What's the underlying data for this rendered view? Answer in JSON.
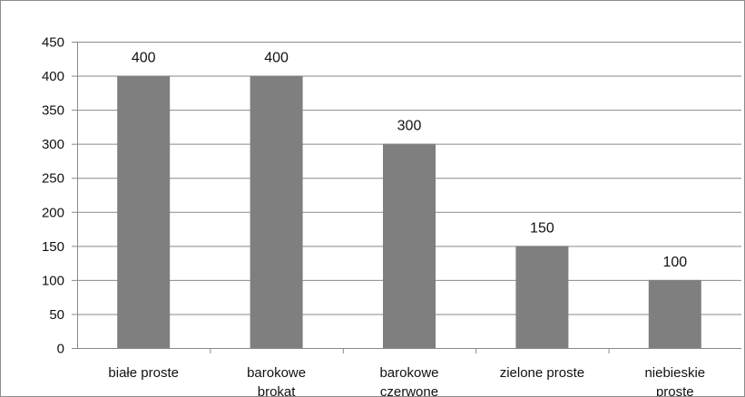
{
  "chart_data": {
    "type": "bar",
    "categories": [
      [
        "białe proste"
      ],
      [
        "barokowe",
        "brokat"
      ],
      [
        "barokowe",
        "czerwone"
      ],
      [
        "zielone proste"
      ],
      [
        "niebieskie",
        "proste"
      ]
    ],
    "values": [
      400,
      400,
      300,
      150,
      100
    ],
    "data_labels": [
      "400",
      "400",
      "300",
      "150",
      "100"
    ],
    "y_ticks": [
      "0",
      "50",
      "100",
      "150",
      "200",
      "250",
      "300",
      "350",
      "400",
      "450"
    ],
    "ylim": [
      0,
      450
    ],
    "grid": true,
    "legend": "none",
    "colors": {
      "bar": "#7f7f7f",
      "grid": "#8a8a8a",
      "axis": "#8a8a8a",
      "text": "#111111"
    }
  }
}
